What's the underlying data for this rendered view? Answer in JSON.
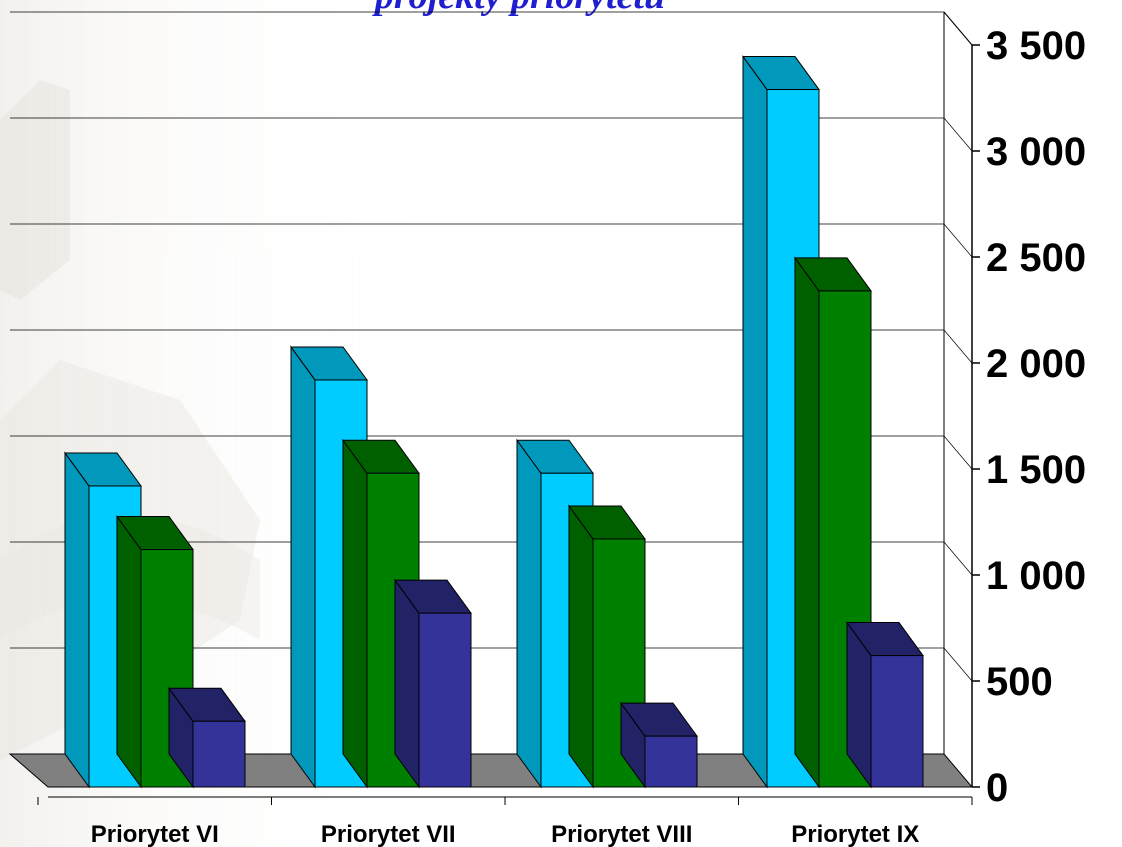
{
  "chart_data": {
    "type": "bar",
    "title_fragment": "projekty priorytetu",
    "categories": [
      "Priorytet VI",
      "Priorytet VII",
      "Priorytet VIII",
      "Priorytet IX"
    ],
    "series": [
      {
        "values": [
          1420,
          1920,
          1480,
          3290
        ],
        "color": "#00ccff",
        "side_color": "#0099bb",
        "top_color": "#0099bb"
      },
      {
        "values": [
          1120,
          1480,
          1170,
          2340
        ],
        "color": "#008000",
        "side_color": "#006000",
        "top_color": "#006000"
      },
      {
        "values": [
          310,
          820,
          240,
          620
        ],
        "color": "#333399",
        "side_color": "#222266",
        "top_color": "#222266"
      }
    ],
    "y_ticks": [
      "0",
      "500",
      "1 000",
      "1 500",
      "2 000",
      "2 500",
      "3 000",
      "3 500"
    ],
    "y_tick_values": [
      0,
      500,
      1000,
      1500,
      2000,
      2500,
      3000,
      3500
    ],
    "ylim": [
      0,
      3500
    ],
    "grid": true,
    "floor_color": "#808080",
    "background_watermark": "faded architectural photo"
  }
}
